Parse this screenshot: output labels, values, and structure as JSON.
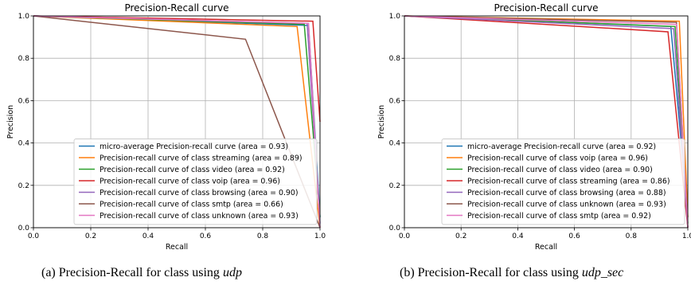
{
  "chart_data": [
    {
      "type": "line",
      "title": "Precision-Recall curve",
      "xlabel": "Recall",
      "ylabel": "Precision",
      "xlim": [
        0.0,
        1.0
      ],
      "ylim": [
        0.0,
        1.0
      ],
      "xticks": [
        "0.0",
        "0.2",
        "0.4",
        "0.6",
        "0.8",
        "1.0"
      ],
      "yticks": [
        "0.0",
        "0.2",
        "0.4",
        "0.6",
        "0.8",
        "1.0"
      ],
      "grid": true,
      "legend_position": "lower-right",
      "series": [
        {
          "name": "micro-average Precision-recall curve (area = 0.93)",
          "color": "#1f77b4",
          "x": [
            0,
            0.96,
            1.0
          ],
          "y": [
            1.0,
            0.955,
            0.05
          ]
        },
        {
          "name": "Precision-recall curve of class streaming (area = 0.89)",
          "color": "#ff7f0e",
          "x": [
            0,
            0.92,
            1.0
          ],
          "y": [
            1.0,
            0.95,
            0.0
          ]
        },
        {
          "name": "Precision-recall curve of class video (area = 0.92)",
          "color": "#2ca02c",
          "x": [
            0,
            0.945,
            1.0
          ],
          "y": [
            1.0,
            0.96,
            0.05
          ]
        },
        {
          "name": "Precision-recall curve of class voip (area = 0.96)",
          "color": "#d62728",
          "x": [
            0,
            0.975,
            1.0
          ],
          "y": [
            1.0,
            0.975,
            0.5
          ]
        },
        {
          "name": "Precision-recall curve of class browsing (area = 0.90)",
          "color": "#9467bd",
          "x": [
            0,
            0.955,
            1.0
          ],
          "y": [
            1.0,
            0.965,
            0.02
          ]
        },
        {
          "name": "Precision-recall curve of class smtp (area = 0.66)",
          "color": "#8c564b",
          "x": [
            0,
            0.74,
            1.0
          ],
          "y": [
            1.0,
            0.89,
            0.0
          ]
        },
        {
          "name": "Precision-recall curve of class unknown (area = 0.93)",
          "color": "#e377c2",
          "x": [
            0,
            0.96,
            1.0
          ],
          "y": [
            1.0,
            0.965,
            0.0
          ]
        }
      ]
    },
    {
      "type": "line",
      "title": "Precision-Recall curve",
      "xlabel": "Recall",
      "ylabel": "Precision",
      "xlim": [
        0.0,
        1.0
      ],
      "ylim": [
        0.0,
        1.0
      ],
      "xticks": [
        "0.0",
        "0.2",
        "0.4",
        "0.6",
        "0.8",
        "1.0"
      ],
      "yticks": [
        "0.0",
        "0.2",
        "0.4",
        "0.6",
        "0.8",
        "1.0"
      ],
      "grid": true,
      "legend_position": "lower-right",
      "series": [
        {
          "name": "micro-average Precision-recall curve (area = 0.92)",
          "color": "#1f77b4",
          "x": [
            0,
            0.94,
            1.0
          ],
          "y": [
            1.0,
            0.95,
            0.05
          ]
        },
        {
          "name": "Precision-recall curve of class voip (area = 0.96)",
          "color": "#ff7f0e",
          "x": [
            0,
            0.97,
            1.0
          ],
          "y": [
            1.0,
            0.975,
            0.05
          ]
        },
        {
          "name": "Precision-recall curve of class video (area = 0.90)",
          "color": "#2ca02c",
          "x": [
            0,
            0.955,
            1.0
          ],
          "y": [
            1.0,
            0.95,
            0.02
          ]
        },
        {
          "name": "Precision-recall curve of class streaming (area = 0.86)",
          "color": "#d62728",
          "x": [
            0,
            0.93,
            1.0
          ],
          "y": [
            1.0,
            0.925,
            0.0
          ]
        },
        {
          "name": "Precision-recall curve of class browsing (area = 0.88)",
          "color": "#9467bd",
          "x": [
            0,
            0.95,
            1.0
          ],
          "y": [
            1.0,
            0.94,
            0.0
          ]
        },
        {
          "name": "Precision-recall curve of class unknown (area = 0.93)",
          "color": "#8c564b",
          "x": [
            0,
            0.96,
            1.0
          ],
          "y": [
            1.0,
            0.97,
            0.0
          ]
        },
        {
          "name": "Precision-recall curve of class smtp (area = 0.92)",
          "color": "#e377c2",
          "x": [
            0,
            0.96,
            1.0
          ],
          "y": [
            1.0,
            0.96,
            0.0
          ]
        }
      ]
    }
  ],
  "captions": [
    {
      "label": "(a)  Precision-Recall for class using ",
      "var": "udp"
    },
    {
      "label": "(b)  Precision-Recall for class using ",
      "var": "udp_sec"
    }
  ]
}
